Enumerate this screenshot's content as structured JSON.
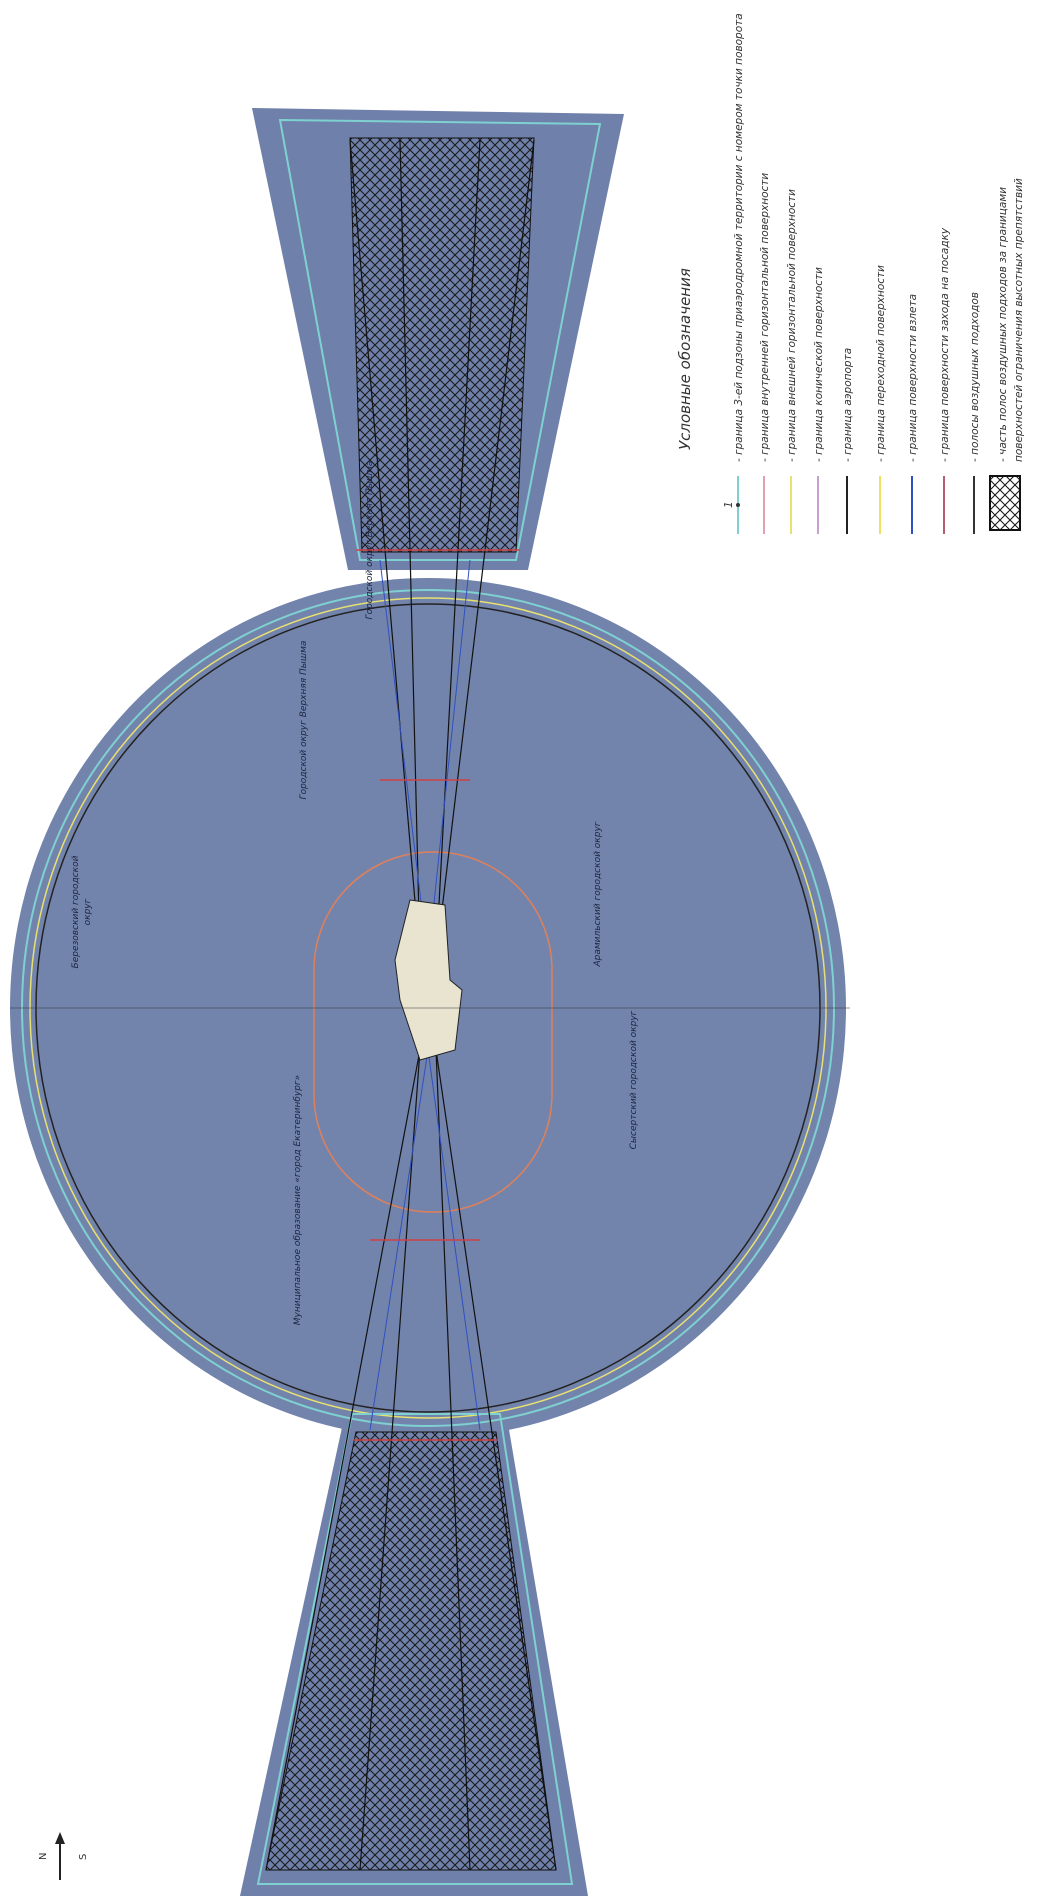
{
  "legend": {
    "title": "Условные обозначения",
    "items": [
      {
        "symbol": "1",
        "lines": [
          "- граница 3-ей подзоны приаэродромной территории с номером точки поворота"
        ],
        "color": "#7fd0d0"
      },
      {
        "lines": [
          "- граница внутренней горизонтальной поверхности"
        ],
        "color": "#e0a0b0"
      },
      {
        "lines": [
          "- граница внешней горизонтальной поверхности"
        ],
        "color": "#e8e070"
      },
      {
        "lines": [
          "- граница конической поверхности"
        ],
        "color": "#c8a0d0"
      },
      {
        "lines": [
          "- граница аэропорта"
        ],
        "color": "#222222"
      },
      {
        "lines": [
          "- граница переходной поверхности"
        ],
        "color": "#f0e060"
      },
      {
        "lines": [
          "- граница поверхности взлета"
        ],
        "color": "#3050c0"
      },
      {
        "lines": [
          "- граница поверхности захода на посадку"
        ],
        "color": "#b06070"
      },
      {
        "lines": [
          "- полосы воздушных подходов"
        ],
        "color": "#333333"
      },
      {
        "lines": [
          "- часть полос воздушных подходов за границами",
          "поверхностей ограничения высотных препятствий"
        ],
        "color": "hatch"
      }
    ]
  },
  "places": [
    {
      "lines": [
        "Березовский городской",
        "округ"
      ]
    },
    {
      "lines": [
        "Городской округ Верхняя Пышма"
      ]
    },
    {
      "lines": [
        "Городской округ Верхняя Пышма"
      ]
    },
    {
      "lines": [
        "Муниципальное образование «город Екатеринбург»"
      ]
    },
    {
      "lines": [
        "Сысертский городской округ"
      ]
    },
    {
      "lines": [
        "Арамильский городской округ"
      ]
    }
  ],
  "compass": {
    "north": "N",
    "south": "S"
  }
}
